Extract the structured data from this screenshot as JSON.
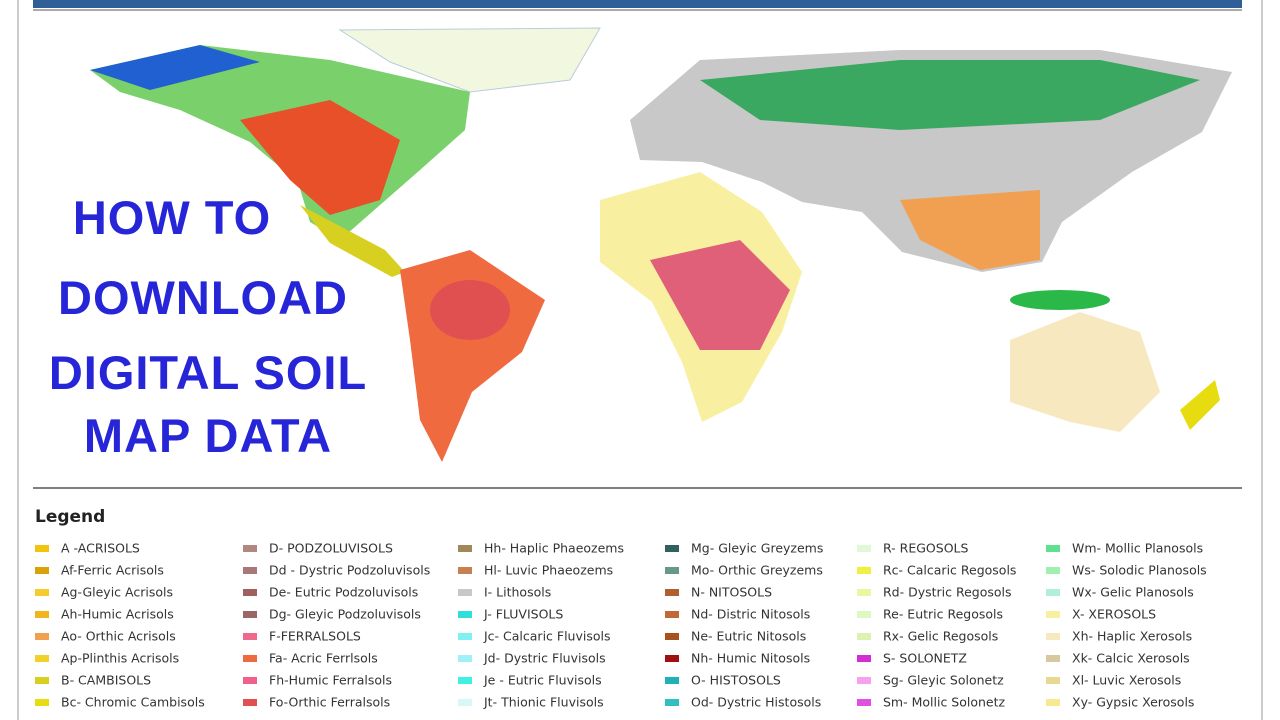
{
  "title_lines": [
    "HOW TO",
    "DOWNLOAD",
    "DIGITAL SOIL",
    "MAP DATA"
  ],
  "legend": {
    "title": "Legend",
    "items": [
      {
        "label": "A -ACRISOLS",
        "color": "#f2c40f"
      },
      {
        "label": "Af-Ferric Acrisols",
        "color": "#d9a10a"
      },
      {
        "label": "Ag-Gleyic Acrisols",
        "color": "#f5cc2a"
      },
      {
        "label": "Ah-Humic Acrisols",
        "color": "#f0b71c"
      },
      {
        "label": "Ao- Orthic Acrisols",
        "color": "#f0a050"
      },
      {
        "label": "Ap-Plinthis Acrisols",
        "color": "#f2d12a"
      },
      {
        "label": "B- CAMBISOLS",
        "color": "#d8d020"
      },
      {
        "label": "Bc- Chromic Cambisols",
        "color": "#e6dc10"
      },
      {
        "label": "D- PODZOLUVISOLS",
        "color": "#b08880"
      },
      {
        "label": "Dd - Dystric Podzoluvisols",
        "color": "#a87878"
      },
      {
        "label": "De- Eutric Podzoluvisols",
        "color": "#a06060"
      },
      {
        "label": "Dg- Gleyic Podzoluvisols",
        "color": "#986868"
      },
      {
        "label": "F-FERRALSOLS",
        "color": "#ee6a8a"
      },
      {
        "label": "Fa- Acric Ferrlsols",
        "color": "#f06a40"
      },
      {
        "label": "Fh-Humic Ferralsols",
        "color": "#f0608a"
      },
      {
        "label": "Fo-Orthic Ferralsols",
        "color": "#e05050"
      },
      {
        "label": "Hh- Haplic Phaeozems",
        "color": "#a08858"
      },
      {
        "label": "Hl- Luvic Phaeozems",
        "color": "#c88050"
      },
      {
        "label": "I- Lithosols",
        "color": "#c8c8c8"
      },
      {
        "label": "J- FLUVISOLS",
        "color": "#30e0d8"
      },
      {
        "label": "Jc- Calcaric Fluvisols",
        "color": "#80f0f0"
      },
      {
        "label": "Jd- Dystric Fluvisols",
        "color": "#a0f0f8"
      },
      {
        "label": "Je - Eutric Fluvisols",
        "color": "#40f0e0"
      },
      {
        "label": "Jt- Thionic Fluvisols",
        "color": "#d8f8f8"
      },
      {
        "label": "Mg- Gleyic Greyzems",
        "color": "#306060"
      },
      {
        "label": "Mo- Orthic Greyzems",
        "color": "#689888"
      },
      {
        "label": "N- NITOSOLS",
        "color": "#b06030"
      },
      {
        "label": "Nd- Distric Nitosols",
        "color": "#c06838"
      },
      {
        "label": "Ne- Eutric Nitosols",
        "color": "#a85020"
      },
      {
        "label": "Nh- Humic Nitosols",
        "color": "#a01010"
      },
      {
        "label": "O- HISTOSOLS",
        "color": "#20b0b8"
      },
      {
        "label": "Od- Dystric Histosols",
        "color": "#30c0c0"
      },
      {
        "label": "R- REGOSOLS",
        "color": "#e0f8d8"
      },
      {
        "label": "Rc- Calcaric Regosols",
        "color": "#f0f040"
      },
      {
        "label": "Rd- Dystric Regosols",
        "color": "#e8f8a0"
      },
      {
        "label": "Re- Eutric Regosols",
        "color": "#e0f8c0"
      },
      {
        "label": "Rx- Gelic Regosols",
        "color": "#e0f0b0"
      },
      {
        "label": "S- SOLONETZ",
        "color": "#d030d0"
      },
      {
        "label": "Sg- Gleyic Solonetz",
        "color": "#f8a0f0"
      },
      {
        "label": "Sm- Mollic Solonetz",
        "color": "#e050e0"
      },
      {
        "label": "Wm- Mollic Planosols",
        "color": "#60e090"
      },
      {
        "label": "Ws- Solodic Planosols",
        "color": "#a0f0b0"
      },
      {
        "label": "Wx- Gelic Planosols",
        "color": "#b0f0d8"
      },
      {
        "label": "X- XEROSOLS",
        "color": "#f8f0a0"
      },
      {
        "label": "Xh- Haplic Xerosols",
        "color": "#f8e8c0"
      },
      {
        "label": "Xk- Calcic Xerosols",
        "color": "#d8c8a0"
      },
      {
        "label": "Xl- Luvic Xerosols",
        "color": "#e8d890"
      },
      {
        "label": "Xy- Gypsic Xerosols",
        "color": "#f8e890"
      }
    ]
  }
}
